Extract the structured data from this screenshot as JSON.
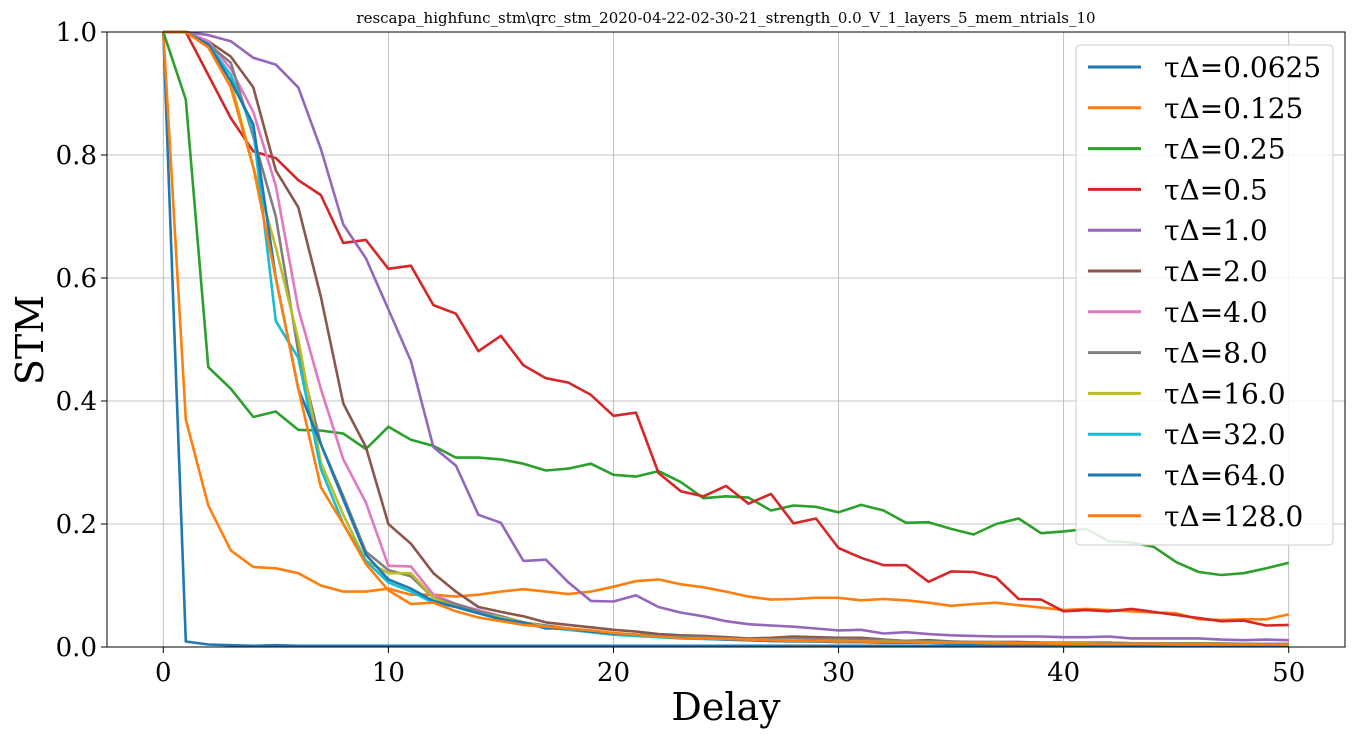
{
  "chart_data": {
    "type": "line",
    "title": "rescapa_highfunc_stm\\qrc_stm_2020-04-22-02-30-21_strength_0.0_V_1_layers_5_mem_ntrials_10",
    "xlabel": "Delay",
    "ylabel": "STM",
    "xlim": [
      -2.5,
      52.5
    ],
    "ylim": [
      0.0,
      1.0
    ],
    "xticks": [
      0,
      10,
      20,
      30,
      40,
      50
    ],
    "yticks": [
      0.0,
      0.2,
      0.4,
      0.6,
      0.8,
      1.0
    ],
    "xtick_labels": [
      "0",
      "10",
      "20",
      "30",
      "40",
      "50"
    ],
    "ytick_labels": [
      "0.0",
      "0.2",
      "0.4",
      "0.6",
      "0.8",
      "1.0"
    ],
    "grid": true,
    "legend_position": "top-right",
    "x": [
      0,
      1,
      2,
      3,
      4,
      5,
      6,
      7,
      8,
      9,
      10,
      11,
      12,
      13,
      14,
      15,
      16,
      17,
      18,
      19,
      20,
      21,
      22,
      23,
      24,
      25,
      26,
      27,
      28,
      29,
      30,
      31,
      32,
      33,
      34,
      35,
      36,
      37,
      38,
      39,
      40,
      41,
      42,
      43,
      44,
      45,
      46,
      47,
      48,
      49,
      50
    ],
    "series": [
      {
        "name": "τΔ=0.0625",
        "color": "#1f77b4",
        "values": [
          1.0,
          0.009,
          0.004,
          0.003,
          0.002,
          0.003,
          0.002,
          0.002,
          0.002,
          0.002,
          0.002,
          0.002,
          0.002,
          0.002,
          0.002,
          0.002,
          0.002,
          0.002,
          0.002,
          0.002,
          0.002,
          0.002,
          0.002,
          0.002,
          0.002,
          0.002,
          0.002,
          0.002,
          0.002,
          0.002,
          0.002,
          0.002,
          0.002,
          0.002,
          0.002,
          0.002,
          0.002,
          0.002,
          0.002,
          0.002,
          0.002,
          0.002,
          0.002,
          0.002,
          0.002,
          0.002,
          0.002,
          0.002,
          0.002,
          0.002,
          0.002
        ]
      },
      {
        "name": "τΔ=0.125",
        "color": "#ff7f0e",
        "values": [
          1.0,
          0.37,
          0.23,
          0.157,
          0.13,
          0.128,
          0.12,
          0.1,
          0.09,
          0.09,
          0.095,
          0.085,
          0.085,
          0.082,
          0.085,
          0.09,
          0.094,
          0.09,
          0.086,
          0.09,
          0.098,
          0.107,
          0.11,
          0.102,
          0.097,
          0.09,
          0.082,
          0.077,
          0.078,
          0.08,
          0.08,
          0.076,
          0.078,
          0.076,
          0.072,
          0.067,
          0.07,
          0.072,
          0.068,
          0.064,
          0.06,
          0.062,
          0.06,
          0.058,
          0.056,
          0.055,
          0.045,
          0.044,
          0.045,
          0.045,
          0.053
        ]
      },
      {
        "name": "τΔ=0.25",
        "color": "#2ca02c",
        "values": [
          1.0,
          0.89,
          0.455,
          0.42,
          0.374,
          0.383,
          0.353,
          0.352,
          0.347,
          0.322,
          0.358,
          0.337,
          0.327,
          0.308,
          0.308,
          0.305,
          0.298,
          0.287,
          0.29,
          0.298,
          0.28,
          0.277,
          0.286,
          0.268,
          0.242,
          0.245,
          0.243,
          0.222,
          0.23,
          0.228,
          0.219,
          0.231,
          0.222,
          0.202,
          0.203,
          0.192,
          0.183,
          0.2,
          0.209,
          0.185,
          0.188,
          0.192,
          0.172,
          0.17,
          0.163,
          0.138,
          0.122,
          0.117,
          0.12,
          0.128,
          0.137
        ]
      },
      {
        "name": "τΔ=0.5",
        "color": "#d62728",
        "values": [
          1.0,
          1.0,
          0.93,
          0.86,
          0.806,
          0.795,
          0.759,
          0.735,
          0.657,
          0.662,
          0.615,
          0.62,
          0.556,
          0.542,
          0.481,
          0.506,
          0.458,
          0.437,
          0.43,
          0.41,
          0.376,
          0.381,
          0.283,
          0.253,
          0.245,
          0.262,
          0.233,
          0.249,
          0.201,
          0.209,
          0.161,
          0.145,
          0.133,
          0.133,
          0.106,
          0.123,
          0.122,
          0.113,
          0.078,
          0.077,
          0.058,
          0.06,
          0.058,
          0.062,
          0.057,
          0.052,
          0.047,
          0.042,
          0.043,
          0.035,
          0.036
        ]
      },
      {
        "name": "τΔ=1.0",
        "color": "#9467bd",
        "values": [
          1.0,
          1.0,
          0.995,
          0.985,
          0.958,
          0.947,
          0.91,
          0.81,
          0.687,
          0.632,
          0.549,
          0.465,
          0.325,
          0.295,
          0.215,
          0.202,
          0.14,
          0.142,
          0.105,
          0.075,
          0.074,
          0.084,
          0.065,
          0.056,
          0.05,
          0.042,
          0.037,
          0.035,
          0.033,
          0.03,
          0.027,
          0.028,
          0.022,
          0.024,
          0.021,
          0.019,
          0.018,
          0.017,
          0.017,
          0.017,
          0.016,
          0.016,
          0.017,
          0.014,
          0.014,
          0.014,
          0.014,
          0.012,
          0.011,
          0.012,
          0.011
        ]
      },
      {
        "name": "τΔ=2.0",
        "color": "#8c564b",
        "values": [
          1.0,
          1.0,
          0.985,
          0.96,
          0.91,
          0.775,
          0.715,
          0.57,
          0.396,
          0.325,
          0.2,
          0.168,
          0.12,
          0.09,
          0.065,
          0.057,
          0.05,
          0.04,
          0.036,
          0.032,
          0.028,
          0.025,
          0.021,
          0.019,
          0.018,
          0.016,
          0.014,
          0.015,
          0.017,
          0.016,
          0.015,
          0.015,
          0.012,
          0.01,
          0.011,
          0.009,
          0.008,
          0.008,
          0.008,
          0.007,
          0.007,
          0.007,
          0.007,
          0.006,
          0.006,
          0.006,
          0.006,
          0.005,
          0.005,
          0.005,
          0.005
        ]
      },
      {
        "name": "τΔ=4.0",
        "color": "#e377c2",
        "values": [
          1.0,
          1.0,
          0.985,
          0.94,
          0.87,
          0.75,
          0.55,
          0.42,
          0.305,
          0.235,
          0.132,
          0.131,
          0.085,
          0.07,
          0.06,
          0.05,
          0.04,
          0.035,
          0.03,
          0.026,
          0.022,
          0.02,
          0.017,
          0.015,
          0.014,
          0.013,
          0.012,
          0.012,
          0.012,
          0.011,
          0.01,
          0.01,
          0.009,
          0.009,
          0.008,
          0.008,
          0.007,
          0.007,
          0.007,
          0.006,
          0.006,
          0.006,
          0.006,
          0.006,
          0.006,
          0.005,
          0.005,
          0.005,
          0.005,
          0.005,
          0.005
        ]
      },
      {
        "name": "τΔ=8.0",
        "color": "#7f7f7f",
        "values": [
          1.0,
          1.0,
          0.98,
          0.95,
          0.83,
          0.7,
          0.48,
          0.33,
          0.245,
          0.155,
          0.125,
          0.115,
          0.08,
          0.07,
          0.058,
          0.05,
          0.04,
          0.035,
          0.03,
          0.025,
          0.022,
          0.02,
          0.018,
          0.017,
          0.016,
          0.014,
          0.013,
          0.013,
          0.014,
          0.013,
          0.013,
          0.012,
          0.011,
          0.01,
          0.009,
          0.009,
          0.008,
          0.008,
          0.008,
          0.007,
          0.007,
          0.007,
          0.007,
          0.006,
          0.006,
          0.006,
          0.006,
          0.006,
          0.005,
          0.005,
          0.005
        ]
      },
      {
        "name": "τΔ=16.0",
        "color": "#bcbd22",
        "values": [
          1.0,
          1.0,
          0.98,
          0.92,
          0.78,
          0.65,
          0.5,
          0.3,
          0.215,
          0.14,
          0.12,
          0.12,
          0.08,
          0.065,
          0.055,
          0.048,
          0.04,
          0.033,
          0.028,
          0.025,
          0.021,
          0.019,
          0.017,
          0.015,
          0.014,
          0.013,
          0.012,
          0.011,
          0.011,
          0.01,
          0.01,
          0.009,
          0.009,
          0.008,
          0.008,
          0.007,
          0.007,
          0.007,
          0.006,
          0.006,
          0.006,
          0.006,
          0.005,
          0.005,
          0.005,
          0.005,
          0.005,
          0.005,
          0.004,
          0.004,
          0.004
        ]
      },
      {
        "name": "τΔ=32.0",
        "color": "#17becf",
        "values": [
          1.0,
          1.0,
          0.98,
          0.93,
          0.84,
          0.53,
          0.47,
          0.29,
          0.2,
          0.14,
          0.105,
          0.09,
          0.072,
          0.065,
          0.055,
          0.046,
          0.038,
          0.032,
          0.028,
          0.024,
          0.02,
          0.018,
          0.016,
          0.014,
          0.013,
          0.012,
          0.011,
          0.01,
          0.01,
          0.009,
          0.009,
          0.008,
          0.008,
          0.007,
          0.007,
          0.007,
          0.006,
          0.006,
          0.006,
          0.005,
          0.005,
          0.005,
          0.005,
          0.005,
          0.004,
          0.004,
          0.004,
          0.004,
          0.004,
          0.004,
          0.004
        ]
      },
      {
        "name": "τΔ=64.0",
        "color": "#1f77b4",
        "values": [
          1.0,
          1.0,
          0.98,
          0.92,
          0.85,
          0.6,
          0.42,
          0.33,
          0.24,
          0.15,
          0.11,
          0.095,
          0.075,
          0.065,
          0.055,
          0.045,
          0.04,
          0.03,
          0.03,
          0.025,
          0.022,
          0.02,
          0.018,
          0.016,
          0.014,
          0.012,
          0.011,
          0.01,
          0.009,
          0.009,
          0.008,
          0.008,
          0.007,
          0.007,
          0.007,
          0.006,
          0.006,
          0.006,
          0.005,
          0.005,
          0.005,
          0.005,
          0.005,
          0.004,
          0.004,
          0.004,
          0.004,
          0.004,
          0.004,
          0.004,
          0.004
        ]
      },
      {
        "name": "τΔ=128.0",
        "color": "#ff7f0e",
        "values": [
          1.0,
          1.0,
          0.975,
          0.91,
          0.78,
          0.6,
          0.42,
          0.26,
          0.2,
          0.135,
          0.092,
          0.07,
          0.072,
          0.058,
          0.048,
          0.042,
          0.036,
          0.033,
          0.03,
          0.027,
          0.023,
          0.02,
          0.017,
          0.015,
          0.014,
          0.013,
          0.012,
          0.011,
          0.01,
          0.01,
          0.009,
          0.009,
          0.008,
          0.008,
          0.007,
          0.007,
          0.007,
          0.006,
          0.006,
          0.006,
          0.005,
          0.005,
          0.005,
          0.005,
          0.005,
          0.004,
          0.004,
          0.004,
          0.004,
          0.004,
          0.004
        ]
      }
    ]
  }
}
